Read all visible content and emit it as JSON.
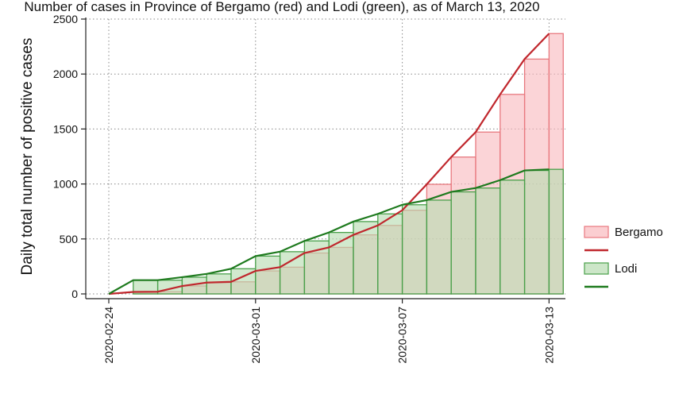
{
  "chart_data": {
    "type": "bar",
    "title": "Number of cases in Province of Bergamo (red) and Lodi (green), as of March 13, 2020",
    "ylabel": "Daily total number of positive cases",
    "xlabel": "",
    "ylim": [
      0,
      2500
    ],
    "y_ticks": [
      0,
      500,
      1000,
      1500,
      2000,
      2500
    ],
    "x_tick_labels": [
      "2020-02-24",
      "2020-03-01",
      "2020-03-07",
      "2020-03-13"
    ],
    "grid": true,
    "legend_position": "right",
    "dates": [
      "2020-02-24",
      "2020-02-25",
      "2020-02-26",
      "2020-02-27",
      "2020-02-28",
      "2020-02-29",
      "2020-03-01",
      "2020-03-02",
      "2020-03-03",
      "2020-03-04",
      "2020-03-05",
      "2020-03-06",
      "2020-03-07",
      "2020-03-08",
      "2020-03-09",
      "2020-03-10",
      "2020-03-11",
      "2020-03-12",
      "2020-03-13"
    ],
    "series": [
      {
        "name": "Bergamo",
        "bar_color": "#f9b9be",
        "bar_edge": "#e8797f",
        "line_color": "#c0272d",
        "values": [
          0,
          18,
          20,
          72,
          103,
          110,
          209,
          243,
          372,
          423,
          537,
          623,
          761,
          997,
          1245,
          1472,
          1815,
          2136,
          2368
        ]
      },
      {
        "name": "Lodi",
        "bar_color": "#b6dcb0",
        "bar_edge": "#49a04a",
        "line_color": "#1e7a1e",
        "values": [
          0,
          125,
          125,
          152,
          182,
          229,
          344,
          384,
          482,
          559,
          658,
          728,
          811,
          853,
          928,
          963,
          1035,
          1123,
          1133
        ]
      }
    ]
  }
}
